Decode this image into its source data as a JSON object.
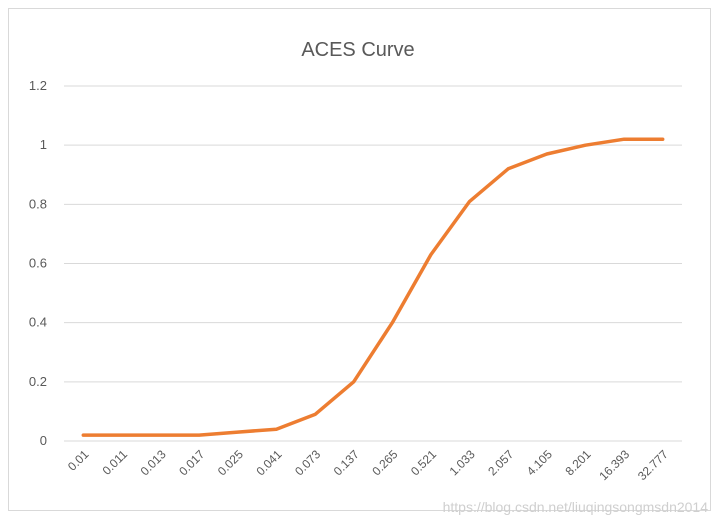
{
  "chart_data": {
    "type": "line",
    "title": "ACES Curve",
    "xlabel": "",
    "ylabel": "",
    "categories": [
      "0.01",
      "0.011",
      "0.013",
      "0.017",
      "0.025",
      "0.041",
      "0.073",
      "0.137",
      "0.265",
      "0.521",
      "1.033",
      "2.057",
      "4.105",
      "8.201",
      "16.393",
      "32.777"
    ],
    "series": [
      {
        "values": [
          0.02,
          0.02,
          0.02,
          0.02,
          0.03,
          0.04,
          0.09,
          0.2,
          0.4,
          0.63,
          0.81,
          0.92,
          0.97,
          1.0,
          1.02,
          1.02
        ],
        "color": "#ed7d31"
      }
    ],
    "ylim": [
      0,
      1.2
    ],
    "yticks": [
      "0",
      "0.2",
      "0.4",
      "0.6",
      "0.8",
      "1",
      "1.2"
    ],
    "grid": true,
    "legend": "none"
  },
  "watermark": "https://blog.csdn.net/liuqingsongmsdn2014"
}
